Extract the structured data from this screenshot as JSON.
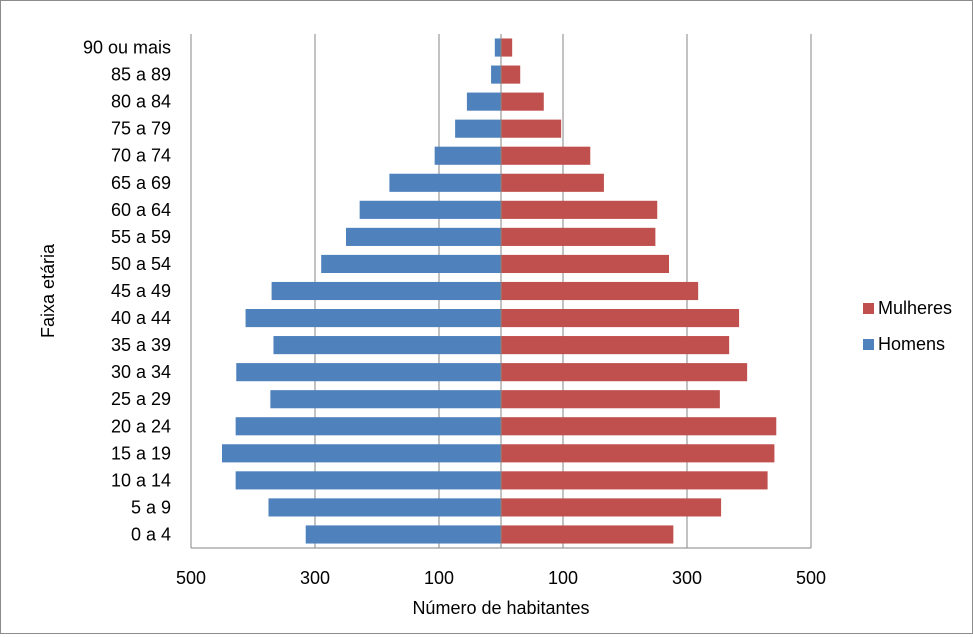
{
  "chart_data": {
    "type": "bar",
    "orientation": "horizontal",
    "style": "population-pyramid",
    "title": "",
    "xlabel": "Número de habitantes",
    "ylabel": "Faixa etária",
    "xlim": [
      -500,
      500
    ],
    "xtick_values": [
      -500,
      -300,
      -100,
      100,
      300,
      500
    ],
    "xtick_labels": [
      "500",
      "300",
      "100",
      "100",
      "300",
      "500"
    ],
    "grid": true,
    "legend_position": "right",
    "categories": [
      "0 a 4",
      "5 a 9",
      "10 a 14",
      "15 a 19",
      "20 a 24",
      "25 a 29",
      "30 a 34",
      "35 a 39",
      "40 a 44",
      "45 a 49",
      "50 a 54",
      "55 a 59",
      "60 a 64",
      "65 a 69",
      "70 a 74",
      "75 a 79",
      "80 a 84",
      "85 a 89",
      "90 ou mais"
    ],
    "series": [
      {
        "name": "Homens",
        "color": "#4f81bd",
        "side": "left",
        "values": [
          315,
          375,
          428,
          450,
          428,
          372,
          427,
          367,
          412,
          370,
          290,
          250,
          228,
          180,
          107,
          74,
          55,
          16,
          10
        ]
      },
      {
        "name": "Mulheres",
        "color": "#c0504d",
        "side": "right",
        "values": [
          278,
          355,
          430,
          441,
          444,
          353,
          397,
          368,
          384,
          318,
          271,
          249,
          252,
          166,
          144,
          97,
          69,
          31,
          18
        ]
      }
    ],
    "legend": [
      {
        "name": "Mulheres",
        "color": "#c0504d"
      },
      {
        "name": "Homens",
        "color": "#4f81bd"
      }
    ]
  }
}
